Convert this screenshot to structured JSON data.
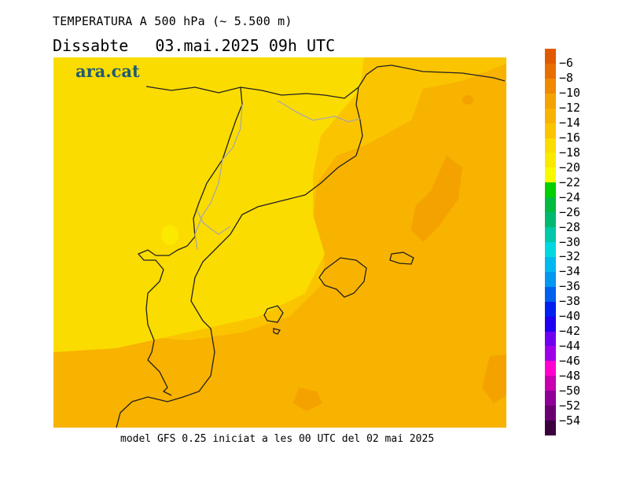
{
  "header": {
    "title": "TEMPERATURA A 500 hPa (~ 5.500 m)",
    "day": "Dissabte",
    "datetime": "03.mai.2025 09h UTC"
  },
  "logo": {
    "text": "ara.cat",
    "color": "#1f5c73"
  },
  "footer": {
    "text": "model GFS 0.25 iniciat a les 00 UTC del 02 mai 2025"
  },
  "map": {
    "field": "temperature-500hPa",
    "units": "°C",
    "colors": {
      "m20_m18": "#fbe900",
      "m18_m16": "#fbdc00",
      "m16_m14": "#fbc400",
      "m14_m12": "#f8b200",
      "m12_m10": "#f4a200"
    }
  },
  "legend": {
    "labels": [
      "-6",
      "-8",
      "-10",
      "-12",
      "-14",
      "-16",
      "-18",
      "-20",
      "-22",
      "-24",
      "-26",
      "-28",
      "-30",
      "-32",
      "-34",
      "-36",
      "-38",
      "-40",
      "-42",
      "-44",
      "-46",
      "-48",
      "-50",
      "-52",
      "-54"
    ],
    "colors": [
      "#e05a00",
      "#e86e00",
      "#f08800",
      "#f4a200",
      "#f8b200",
      "#fbc400",
      "#fbdc00",
      "#fbe900",
      "#f9f900",
      "#00d000",
      "#00bb40",
      "#00b870",
      "#00c8a8",
      "#00d8e0",
      "#00b8f0",
      "#0098f0",
      "#0060f0",
      "#0020f0",
      "#2000f0",
      "#7000f0",
      "#a000e8",
      "#ff00d0",
      "#c800b0",
      "#8e0098",
      "#6a0070",
      "#3a0040"
    ]
  }
}
